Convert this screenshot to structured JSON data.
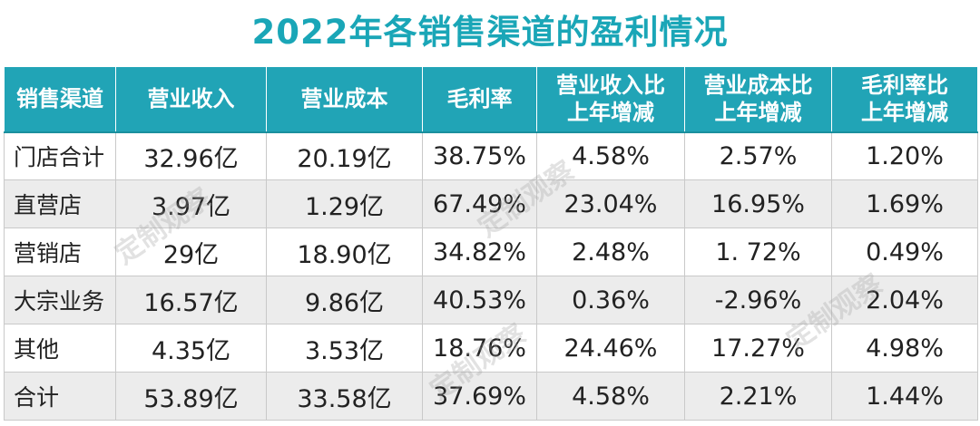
{
  "chart_data": {
    "type": "table",
    "title": "2022年各销售渠道的盈利情况",
    "columns": [
      "销售渠道",
      "营业收入",
      "营业成本",
      "毛利率",
      "营业收入比\n上年增减",
      "营业成本比\n上年增减",
      "毛利率比\n上年增减"
    ],
    "rows": [
      [
        "门店合计",
        "32.96亿",
        "20.19亿",
        "38.75%",
        "4.58%",
        "2.57%",
        "1.20%"
      ],
      [
        "直营店",
        "3.97亿",
        "1.29亿",
        "67.49%",
        "23.04%",
        "16.95%",
        "1.69%"
      ],
      [
        "营销店",
        "29亿",
        "18.90亿",
        "34.82%",
        "2.48%",
        "1. 72%",
        "0.49%"
      ],
      [
        "大宗业务",
        "16.57亿",
        "9.86亿",
        "40.53%",
        "0.36%",
        "-2.96%",
        "2.04%"
      ],
      [
        "其他",
        "4.35亿",
        "3.53亿",
        "18.76%",
        "24.46%",
        "17.27%",
        "4.98%"
      ],
      [
        "合计",
        "53.89亿",
        "33.58亿",
        "37.69%",
        "4.58%",
        "2.21%",
        "1.44%"
      ]
    ]
  },
  "watermark": {
    "text": "定制观察"
  },
  "colors": {
    "title": "#1aa6b7",
    "header_bg": "#21a4b6",
    "header_text": "#ffffff",
    "row_alt_bg": "#ececec"
  }
}
